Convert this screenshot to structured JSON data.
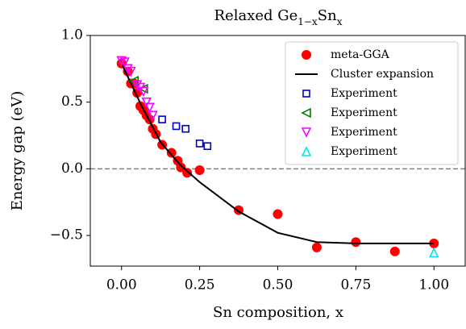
{
  "chart_data": {
    "type": "scatter",
    "title": [
      "Relaxed Ge",
      "1−x",
      "Sn",
      "x"
    ],
    "x_label": "Sn composition, x",
    "y_label": "Energy gap (eV)",
    "xlim": [
      -0.1,
      1.1
    ],
    "ylim": [
      -0.73,
      1.0
    ],
    "xticks": [
      {
        "value": 0,
        "label": "0.00"
      },
      {
        "value": 0.25,
        "label": "0.25"
      },
      {
        "value": 0.5,
        "label": "0.50"
      },
      {
        "value": 0.75,
        "label": "0.75"
      },
      {
        "value": 1,
        "label": "1.00"
      }
    ],
    "yticks": [
      {
        "value": 1,
        "label": "1.0"
      },
      {
        "value": 0.5,
        "label": "0.5"
      },
      {
        "value": 0,
        "label": "0.0"
      },
      {
        "value": -0.5,
        "label": "−0.5"
      }
    ],
    "hline": 0,
    "hline_color": "#808080",
    "legend": "upper right",
    "series": [
      {
        "name": "meta-GGA",
        "color": "#ff0000",
        "marker": "circle",
        "x": [
          0.0,
          0.02,
          0.03,
          0.04,
          0.05,
          0.06,
          0.07,
          0.08,
          0.09,
          0.1,
          0.11,
          0.13,
          0.16,
          0.18,
          0.19,
          0.21,
          0.25,
          0.375,
          0.5,
          0.625,
          0.75,
          0.875,
          1.0
        ],
        "values": [
          0.79,
          0.73,
          0.64,
          0.64,
          0.57,
          0.47,
          0.44,
          0.4,
          0.37,
          0.3,
          0.26,
          0.18,
          0.12,
          0.06,
          0.01,
          -0.03,
          -0.01,
          -0.31,
          -0.34,
          -0.59,
          -0.55,
          -0.62,
          -0.56
        ]
      },
      {
        "name": "Cluster expansion",
        "color": "#000000",
        "marker": "line",
        "x": [
          0.0,
          0.0625,
          0.125,
          0.1875,
          0.25,
          0.375,
          0.5,
          0.625,
          0.75,
          0.875,
          1.0
        ],
        "values": [
          0.79,
          0.48,
          0.2,
          0.03,
          -0.1,
          -0.32,
          -0.48,
          -0.55,
          -0.56,
          -0.56,
          -0.56
        ]
      },
      {
        "name": "Experiment",
        "color": "#0000cc",
        "marker": "square",
        "x": [
          0.13,
          0.175,
          0.205,
          0.25,
          0.275
        ],
        "values": [
          0.37,
          0.32,
          0.3,
          0.19,
          0.17
        ]
      },
      {
        "name": "Experiment",
        "color": "#008000",
        "marker": "triangle-left",
        "x": [
          0.04,
          0.07
        ],
        "values": [
          0.66,
          0.6
        ]
      },
      {
        "name": "Experiment",
        "color": "#ff00ff",
        "marker": "triangle-down",
        "x": [
          0.0,
          0.01,
          0.02,
          0.03,
          0.05,
          0.06,
          0.07,
          0.08,
          0.09,
          0.1
        ],
        "values": [
          0.81,
          0.8,
          0.75,
          0.73,
          0.63,
          0.61,
          0.58,
          0.5,
          0.46,
          0.4
        ]
      },
      {
        "name": "Experiment",
        "color": "#00e5ee",
        "marker": "triangle-up",
        "x": [
          1.0
        ],
        "values": [
          -0.63
        ]
      }
    ]
  }
}
